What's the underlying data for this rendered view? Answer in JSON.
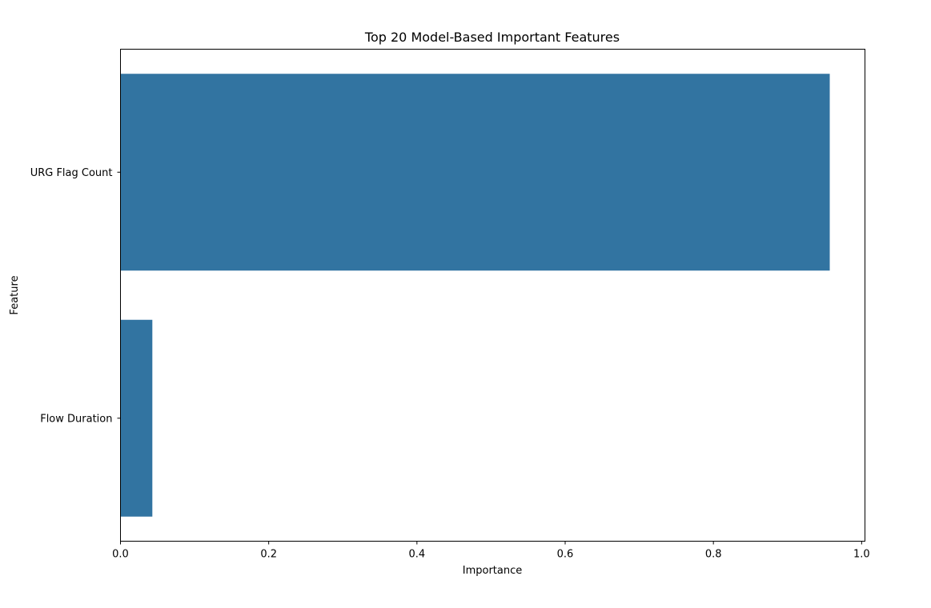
{
  "chart_data": {
    "type": "bar",
    "orientation": "horizontal",
    "title": "Top 20 Model-Based Important Features",
    "xlabel": "Importance",
    "ylabel": "Feature",
    "categories": [
      "URG Flag Count",
      "Flow Duration"
    ],
    "values": [
      0.957,
      0.043
    ],
    "xlim": [
      0,
      1.0
    ],
    "xticks": [
      0.0,
      0.2,
      0.4,
      0.6,
      0.8,
      1.0
    ],
    "xtick_labels": [
      "0.0",
      "0.2",
      "0.4",
      "0.6",
      "0.8",
      "1.0"
    ],
    "bar_color": "#3274a1",
    "grid": false,
    "legend": "none"
  }
}
